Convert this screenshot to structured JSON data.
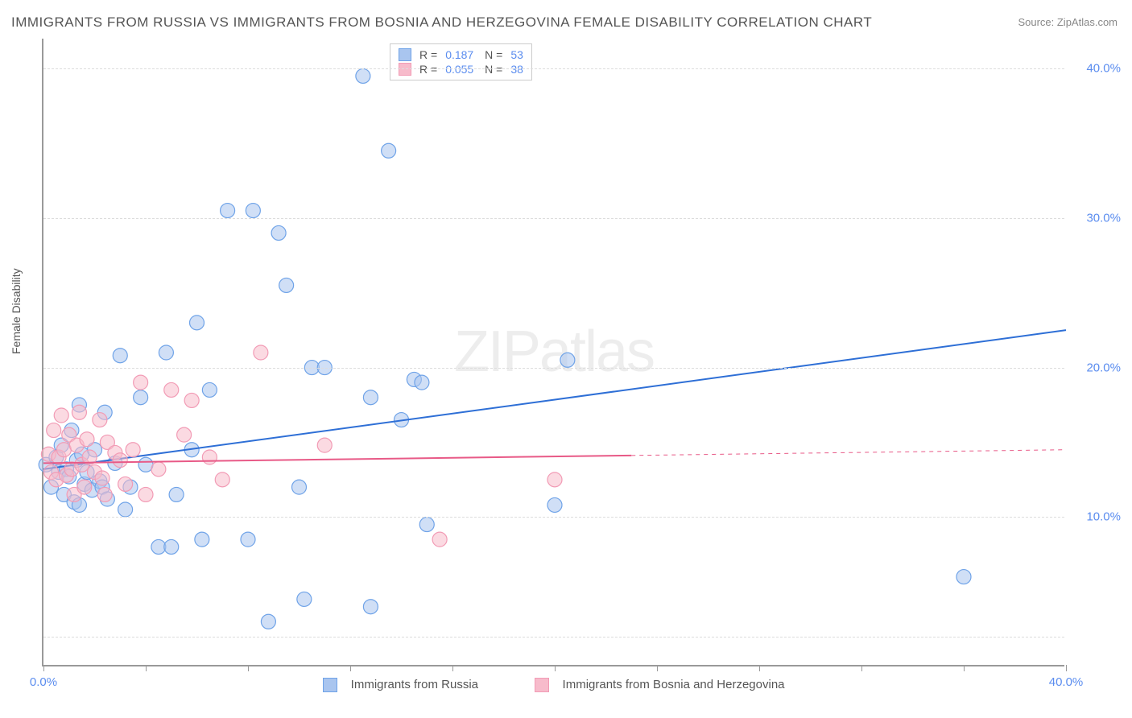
{
  "title": "IMMIGRANTS FROM RUSSIA VS IMMIGRANTS FROM BOSNIA AND HERZEGOVINA FEMALE DISABILITY CORRELATION CHART",
  "source": "Source: ZipAtlas.com",
  "watermark": "ZIPatlas",
  "y_axis_label": "Female Disability",
  "chart": {
    "type": "scatter",
    "xlim": [
      0,
      40
    ],
    "ylim": [
      0,
      42
    ],
    "x_ticks": [
      0,
      4,
      8,
      12,
      16,
      20,
      24,
      28,
      32,
      36,
      40
    ],
    "x_tick_labels": {
      "0": "0.0%",
      "40": "40.0%"
    },
    "y_gridlines": [
      2,
      10,
      20,
      30,
      40
    ],
    "y_tick_labels": {
      "10": "10.0%",
      "20": "20.0%",
      "30": "30.0%",
      "40": "40.0%"
    },
    "background_color": "#ffffff",
    "grid_color": "#dddddd",
    "axis_color": "#999999",
    "tick_label_color": "#5b8def",
    "marker_radius": 9,
    "marker_opacity": 0.55,
    "line_width": 2
  },
  "series": [
    {
      "name": "Immigrants from Russia",
      "color": "#6fa3e8",
      "fill": "#a9c5ef",
      "line_color": "#2e6fd6",
      "r": "0.187",
      "n": "53",
      "trend": {
        "x1": 0,
        "y1": 13.2,
        "x2": 40,
        "y2": 22.5,
        "solid_until": 40
      },
      "points": [
        [
          0.1,
          13.5
        ],
        [
          0.3,
          12.0
        ],
        [
          0.5,
          14.0
        ],
        [
          0.6,
          13.0
        ],
        [
          0.7,
          14.8
        ],
        [
          0.8,
          11.5
        ],
        [
          0.9,
          13.2
        ],
        [
          1.0,
          12.7
        ],
        [
          1.1,
          15.8
        ],
        [
          1.2,
          11.0
        ],
        [
          1.3,
          13.8
        ],
        [
          1.4,
          17.5
        ],
        [
          1.4,
          10.8
        ],
        [
          1.5,
          14.2
        ],
        [
          1.6,
          12.2
        ],
        [
          1.7,
          13.0
        ],
        [
          1.9,
          11.8
        ],
        [
          2.0,
          14.5
        ],
        [
          2.2,
          12.4
        ],
        [
          2.3,
          12.0
        ],
        [
          2.4,
          17.0
        ],
        [
          2.5,
          11.2
        ],
        [
          2.8,
          13.6
        ],
        [
          3.0,
          20.8
        ],
        [
          3.2,
          10.5
        ],
        [
          3.4,
          12.0
        ],
        [
          3.8,
          18.0
        ],
        [
          4.0,
          13.5
        ],
        [
          4.5,
          8.0
        ],
        [
          4.8,
          21.0
        ],
        [
          5.0,
          8.0
        ],
        [
          5.2,
          11.5
        ],
        [
          5.8,
          14.5
        ],
        [
          6.0,
          23.0
        ],
        [
          6.2,
          8.5
        ],
        [
          6.5,
          18.5
        ],
        [
          7.2,
          30.5
        ],
        [
          8.0,
          8.5
        ],
        [
          8.2,
          30.5
        ],
        [
          8.8,
          3.0
        ],
        [
          9.2,
          29.0
        ],
        [
          9.5,
          25.5
        ],
        [
          10.0,
          12.0
        ],
        [
          10.2,
          4.5
        ],
        [
          10.5,
          20.0
        ],
        [
          11.0,
          20.0
        ],
        [
          12.5,
          39.5
        ],
        [
          12.8,
          18.0
        ],
        [
          12.8,
          4.0
        ],
        [
          13.5,
          34.5
        ],
        [
          14.0,
          16.5
        ],
        [
          14.5,
          19.2
        ],
        [
          15.0,
          9.5
        ],
        [
          14.8,
          19.0
        ],
        [
          20.0,
          10.8
        ],
        [
          20.5,
          20.5
        ],
        [
          36.0,
          6.0
        ]
      ]
    },
    {
      "name": "Immigrants from Bosnia and Herzegovina",
      "color": "#f29bb5",
      "fill": "#f7bbcb",
      "line_color": "#e85a87",
      "r": "0.055",
      "n": "38",
      "trend": {
        "x1": 0,
        "y1": 13.6,
        "x2": 40,
        "y2": 14.5,
        "solid_until": 23
      },
      "points": [
        [
          0.2,
          14.2
        ],
        [
          0.3,
          13.0
        ],
        [
          0.4,
          15.8
        ],
        [
          0.5,
          12.5
        ],
        [
          0.6,
          14.0
        ],
        [
          0.7,
          16.8
        ],
        [
          0.8,
          14.5
        ],
        [
          0.9,
          12.8
        ],
        [
          1.0,
          15.5
        ],
        [
          1.1,
          13.2
        ],
        [
          1.2,
          11.5
        ],
        [
          1.3,
          14.8
        ],
        [
          1.4,
          17.0
        ],
        [
          1.5,
          13.5
        ],
        [
          1.6,
          12.0
        ],
        [
          1.7,
          15.2
        ],
        [
          1.8,
          14.0
        ],
        [
          2.0,
          13.0
        ],
        [
          2.2,
          16.5
        ],
        [
          2.3,
          12.6
        ],
        [
          2.4,
          11.5
        ],
        [
          2.5,
          15.0
        ],
        [
          2.8,
          14.3
        ],
        [
          3.0,
          13.8
        ],
        [
          3.2,
          12.2
        ],
        [
          3.5,
          14.5
        ],
        [
          3.8,
          19.0
        ],
        [
          4.0,
          11.5
        ],
        [
          4.5,
          13.2
        ],
        [
          5.0,
          18.5
        ],
        [
          5.5,
          15.5
        ],
        [
          5.8,
          17.8
        ],
        [
          6.5,
          14.0
        ],
        [
          7.0,
          12.5
        ],
        [
          8.5,
          21.0
        ],
        [
          11.0,
          14.8
        ],
        [
          15.5,
          8.5
        ],
        [
          20.0,
          12.5
        ]
      ]
    }
  ],
  "legend_bottom": [
    {
      "label": "Immigrants from Russia",
      "fill": "#a9c5ef",
      "border": "#6fa3e8"
    },
    {
      "label": "Immigrants from Bosnia and Herzegovina",
      "fill": "#f7bbcb",
      "border": "#f29bb5"
    }
  ]
}
